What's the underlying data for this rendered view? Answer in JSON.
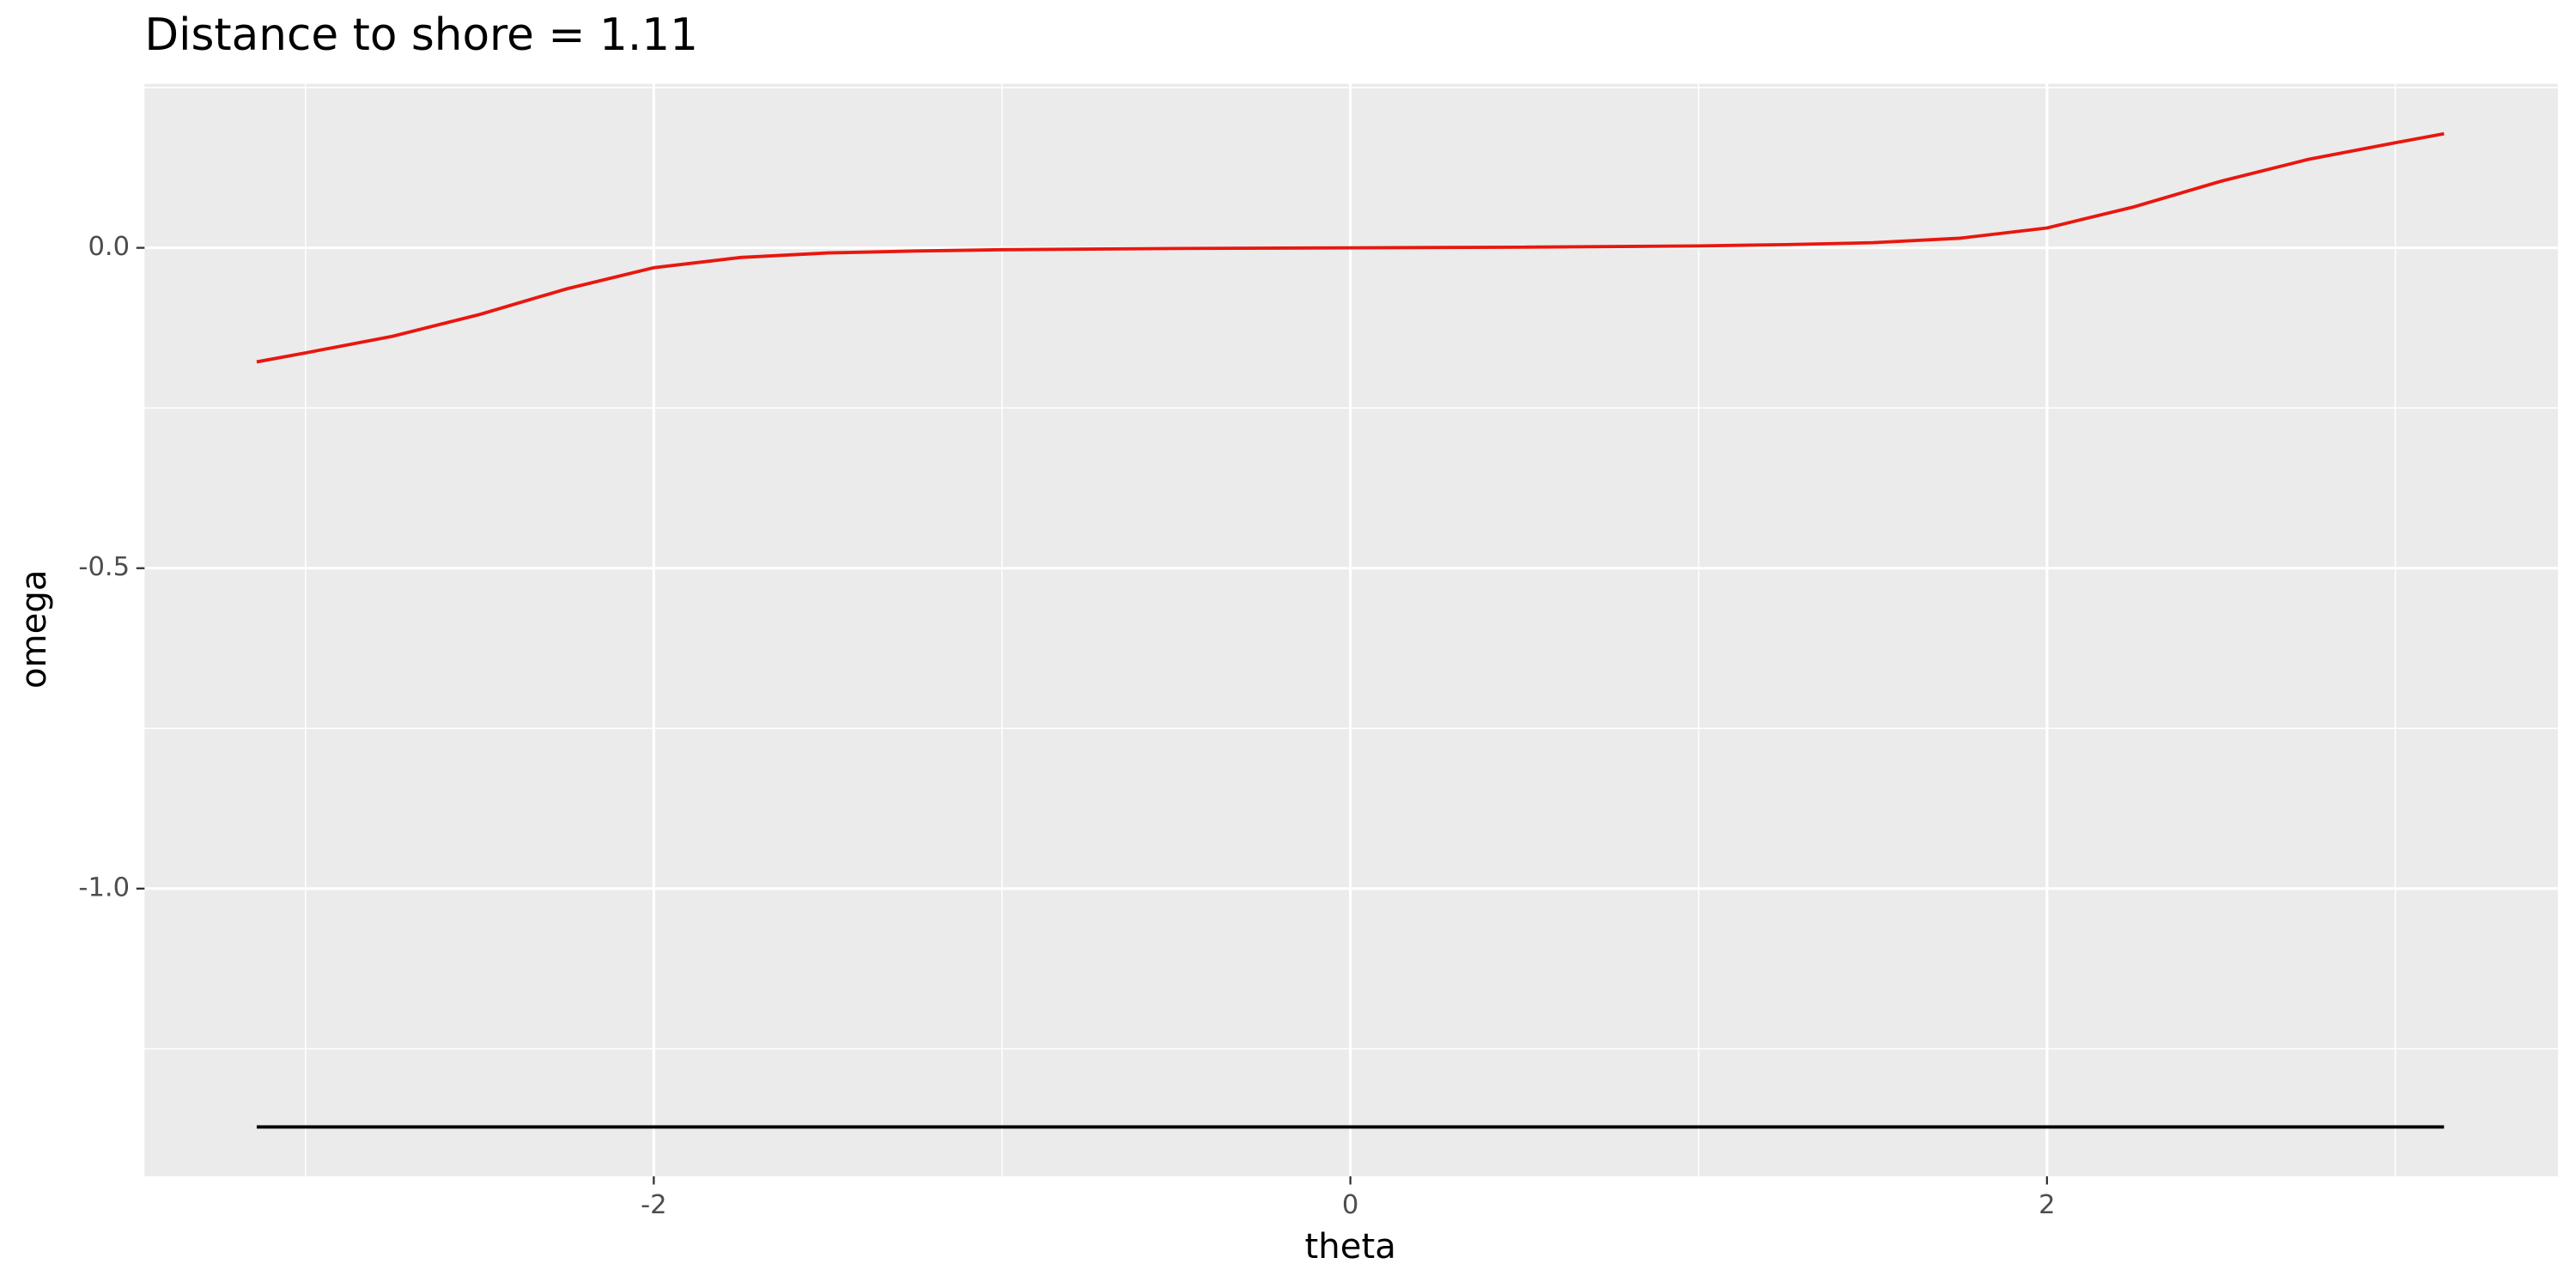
{
  "chart_data": {
    "type": "line",
    "title": "Distance to shore = 1.11",
    "x_label": "theta",
    "y_label": "omega",
    "xlim": [
      -3.462,
      3.467
    ],
    "ylim": [
      -1.449,
      0.256
    ],
    "xticks": [
      -2,
      0,
      2
    ],
    "yticks": [
      {
        "value": 0,
        "label": "0.0"
      },
      {
        "value": -0.5,
        "label": "-0.5"
      },
      {
        "value": -1,
        "label": "-1.0"
      }
    ],
    "minor_grid": {
      "x": [
        -3,
        -1,
        1,
        3
      ],
      "y": [
        0.25,
        -0.25,
        -0.75,
        -1.25
      ]
    },
    "grid": true,
    "series": [
      {
        "color": "#e8170f",
        "x": [
          -3.14,
          -3,
          -2.75,
          -2.5,
          -2.25,
          -2,
          -1.75,
          -1.5,
          -1.25,
          -1,
          -0.5,
          0,
          0.5,
          1,
          1.25,
          1.5,
          1.75,
          2,
          2.25,
          2.5,
          2.75,
          3,
          3.14
        ],
        "values": [
          -0.178,
          -0.164,
          -0.138,
          -0.104,
          -0.064,
          -0.031,
          -0.015,
          -0.008,
          -0.005,
          -0.003,
          -0.001,
          0,
          0.001,
          0.003,
          0.005,
          0.008,
          0.015,
          0.031,
          0.064,
          0.104,
          0.138,
          0.164,
          0.178
        ]
      },
      {
        "color": "#000000",
        "x": [
          -3.14,
          3.14
        ],
        "values": [
          -1.372,
          -1.372
        ]
      }
    ]
  }
}
